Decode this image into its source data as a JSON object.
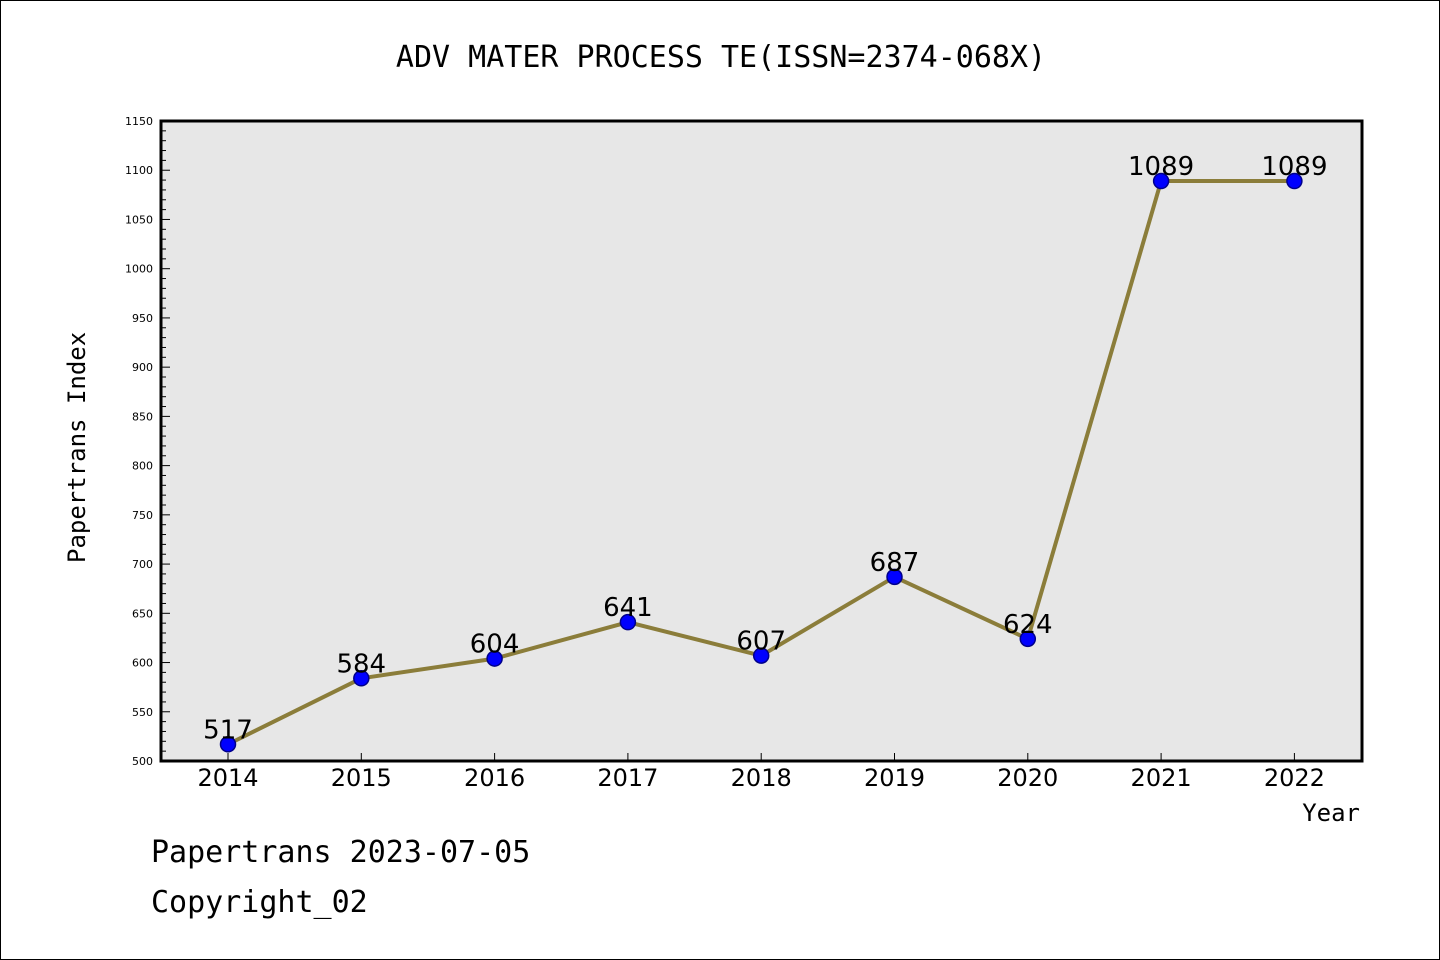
{
  "chart_data": {
    "type": "line",
    "title": "ADV MATER PROCESS TE(ISSN=2374-068X)",
    "xlabel": "Year",
    "ylabel": "Papertrans Index",
    "categories": [
      "2014",
      "2015",
      "2016",
      "2017",
      "2018",
      "2019",
      "2020",
      "2021",
      "2022"
    ],
    "series": [
      {
        "values": [
          517,
          584,
          604,
          641,
          607,
          687,
          624,
          1089,
          1089
        ]
      }
    ],
    "data_labels": [
      "517",
      "584",
      "604",
      "641",
      "607",
      "687",
      "624",
      "1089",
      "1089"
    ],
    "ylim": [
      500,
      1150
    ],
    "yticks": [
      500,
      550,
      600,
      650,
      700,
      750,
      800,
      850,
      900,
      950,
      1000,
      1050,
      1100,
      1150
    ],
    "ytick_labels": [
      "500",
      "550",
      "600",
      "650",
      "700",
      "750",
      "800",
      "850",
      "900",
      "950",
      "1000",
      "1050",
      "1100",
      "1150"
    ],
    "grid": false,
    "legend": "none",
    "colors": {
      "line": "#8B7D3A",
      "marker_fill": "#0000FF",
      "marker_edge": "#00008B",
      "plot_background": "#E7E7E7",
      "axes_frame": "#000000"
    }
  },
  "footer": {
    "line1": "Papertrans 2023-07-05",
    "line2": "Copyright_02"
  }
}
